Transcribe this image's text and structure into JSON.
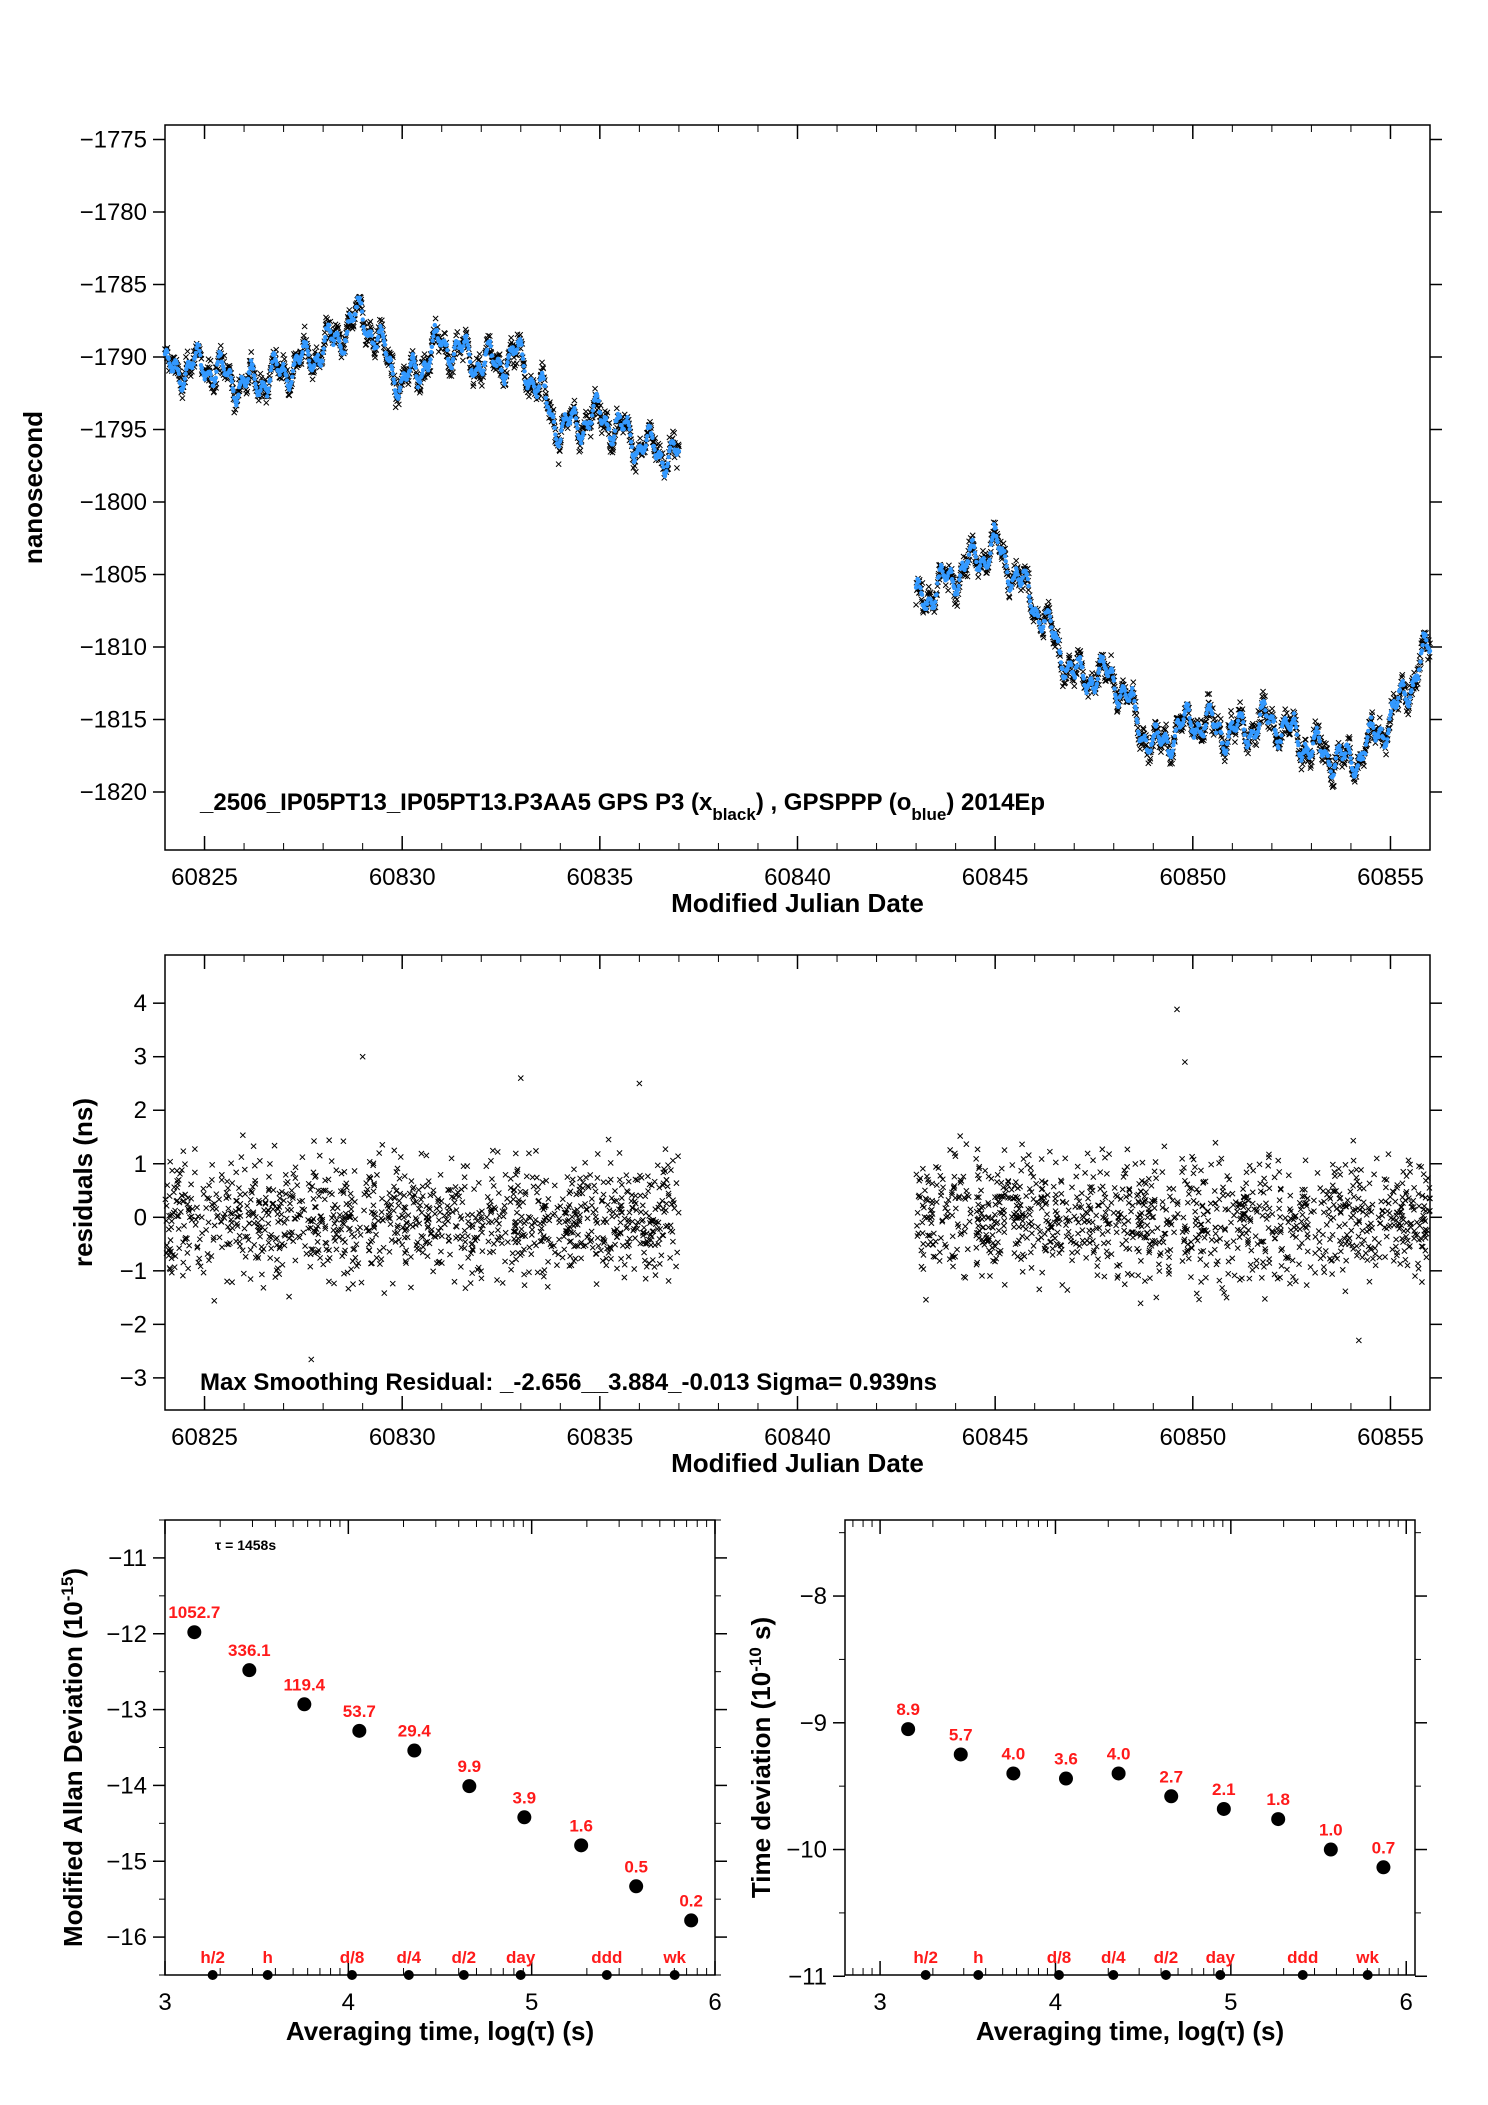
{
  "chart_data": [
    {
      "type": "scatter",
      "panel": "top",
      "xlabel": "Modified Julian Date",
      "ylabel": "nanosecond",
      "xlim": [
        60824,
        60856
      ],
      "ylim": [
        -1824,
        -1774
      ],
      "xticks": [
        60825,
        60830,
        60835,
        60840,
        60845,
        60850,
        60855
      ],
      "yticks": [
        -1775,
        -1780,
        -1785,
        -1790,
        -1795,
        -1800,
        -1805,
        -1810,
        -1815,
        -1820
      ],
      "annotation": {
        "prefix": "_2506_IP05PT13_IP05PT13.P3AA5     GPS P3 (x",
        "sub1": "black",
        "mid": ") ,  GPSPPP (o",
        "sub2": "blue",
        "suffix": ")  2014Ep"
      },
      "colors": {
        "gps_p3": "#000000",
        "gpsppp": "#3399ff"
      },
      "series": [
        {
          "marker": "x",
          "segments": [
            {
              "x": [
                60824.0,
                60825.0,
                60826.0,
                60827.0,
                60828.0,
                60829.0,
                60830.0,
                60831.0,
                60832.0,
                60833.0,
                60834.0,
                60835.0,
                60836.0,
                60837.0
              ],
              "y": [
                -1791,
                -1790.5,
                -1792,
                -1791,
                -1789.5,
                -1787,
                -1792,
                -1789,
                -1790.5,
                -1790,
                -1795,
                -1794,
                -1796,
                -1797
              ]
            },
            {
              "x": [
                60843.0,
                60844.0,
                60845.0,
                60846.0,
                60847.0,
                60848.0,
                60849.0,
                60850.0,
                60851.0,
                60852.0,
                60853.0,
                60854.0,
                60855.0,
                60856.0
              ],
              "y": [
                -1807,
                -1805,
                -1803,
                -1807,
                -1812,
                -1812,
                -1817,
                -1815,
                -1816,
                -1815,
                -1817,
                -1818,
                -1815,
                -1810
              ]
            }
          ]
        },
        {
          "marker": "o",
          "segments": [
            {
              "x": [
                60824.0,
                60825.0,
                60826.0,
                60827.0,
                60828.0,
                60829.0,
                60830.0,
                60831.0,
                60832.0,
                60833.0,
                60834.0,
                60835.0,
                60836.0,
                60837.0
              ],
              "y": [
                -1791,
                -1790.5,
                -1792,
                -1791,
                -1789.5,
                -1787,
                -1792,
                -1789,
                -1790.5,
                -1790,
                -1795,
                -1794,
                -1796,
                -1797
              ]
            },
            {
              "x": [
                60843.0,
                60844.0,
                60845.0,
                60846.0,
                60847.0,
                60848.0,
                60849.0,
                60850.0,
                60851.0,
                60852.0,
                60853.0,
                60854.0,
                60855.0,
                60856.0
              ],
              "y": [
                -1807,
                -1805,
                -1803,
                -1807,
                -1812,
                -1812,
                -1817,
                -1815,
                -1816,
                -1815,
                -1817,
                -1818,
                -1815,
                -1810
              ]
            }
          ]
        }
      ]
    },
    {
      "type": "scatter",
      "panel": "middle",
      "xlabel": "Modified Julian Date",
      "ylabel": "residuals (ns)",
      "xlim": [
        60824,
        60856
      ],
      "ylim": [
        -3.6,
        4.9
      ],
      "xticks": [
        60825,
        60830,
        60835,
        60840,
        60845,
        60850,
        60855
      ],
      "yticks": [
        4,
        3,
        2,
        1,
        0,
        -1,
        -2,
        -3
      ],
      "annotation": "Max Smoothing Residual: _-2.656__3.884_-0.013  Sigma= 0.939ns",
      "stats": {
        "min": -2.656,
        "max": 3.884,
        "mean": -0.013,
        "sigma": 0.939
      },
      "series": [
        {
          "marker": "x",
          "segments": [
            {
              "xrange": [
                60824.0,
                60837.0
              ]
            },
            {
              "xrange": [
                60843.0,
                60856.0
              ]
            }
          ],
          "outliers": {
            "x": [
              60829.0,
              60849.6,
              60849.8,
              60833.0,
              60836.0,
              60827.7,
              60854.2
            ],
            "y": [
              3.0,
              3.884,
              2.9,
              2.6,
              2.5,
              -2.656,
              -2.3
            ]
          }
        }
      ]
    },
    {
      "type": "scatter",
      "panel": "bottom-left",
      "xlabel": "Averaging time, log(τ) (s)",
      "ylabel": "Modified Allan Deviation",
      "ylabel_exp": "-15",
      "tau_note": "τ = 1458s",
      "xlim": [
        3,
        6
      ],
      "ylim": [
        -16.5,
        -10.5
      ],
      "xticks": [
        3,
        4,
        5,
        6
      ],
      "yticks": [
        -11,
        -12,
        -13,
        -14,
        -15,
        -16
      ],
      "points": {
        "x": [
          3.16,
          3.46,
          3.76,
          4.06,
          4.36,
          4.66,
          4.96,
          5.27,
          5.57,
          5.87
        ],
        "y": [
          -11.98,
          -12.48,
          -12.93,
          -13.28,
          -13.54,
          -14.01,
          -14.42,
          -14.79,
          -15.33,
          -15.78
        ],
        "labels": [
          "1052.7",
          "336.1",
          "119.4",
          "53.7",
          "29.4",
          "9.9",
          "3.9",
          "1.6",
          "0.5",
          "0.2"
        ]
      },
      "markers": {
        "x": [
          3.26,
          3.56,
          4.02,
          4.33,
          4.63,
          4.94,
          5.41,
          5.78
        ],
        "labels": [
          "h/2",
          "h",
          "d/8",
          "d/4",
          "d/2",
          "day",
          "ddd",
          "wk"
        ]
      }
    },
    {
      "type": "scatter",
      "panel": "bottom-right",
      "xlabel": "Averaging time, log(τ) (s)",
      "ylabel": "Time deviation",
      "ylabel_exp": "-10",
      "ylabel_unit": " s)",
      "xlim": [
        2.8,
        6.05
      ],
      "ylim": [
        -10.99,
        -7.4
      ],
      "xticks": [
        3,
        4,
        5,
        6
      ],
      "yticks": [
        -8,
        -9,
        -10,
        -11
      ],
      "points": {
        "x": [
          3.16,
          3.46,
          3.76,
          4.06,
          4.36,
          4.66,
          4.96,
          5.27,
          5.57,
          5.87
        ],
        "y": [
          -9.05,
          -9.25,
          -9.4,
          -9.44,
          -9.4,
          -9.58,
          -9.68,
          -9.76,
          -10.0,
          -10.14
        ],
        "labels": [
          "8.9",
          "5.7",
          "4.0",
          "3.6",
          "4.0",
          "2.7",
          "2.1",
          "1.8",
          "1.0",
          "0.7"
        ]
      },
      "markers": {
        "x": [
          3.26,
          3.56,
          4.02,
          4.33,
          4.63,
          4.94,
          5.41,
          5.78
        ],
        "labels": [
          "h/2",
          "h",
          "d/8",
          "d/4",
          "d/2",
          "day",
          "ddd",
          "wk"
        ]
      }
    }
  ]
}
